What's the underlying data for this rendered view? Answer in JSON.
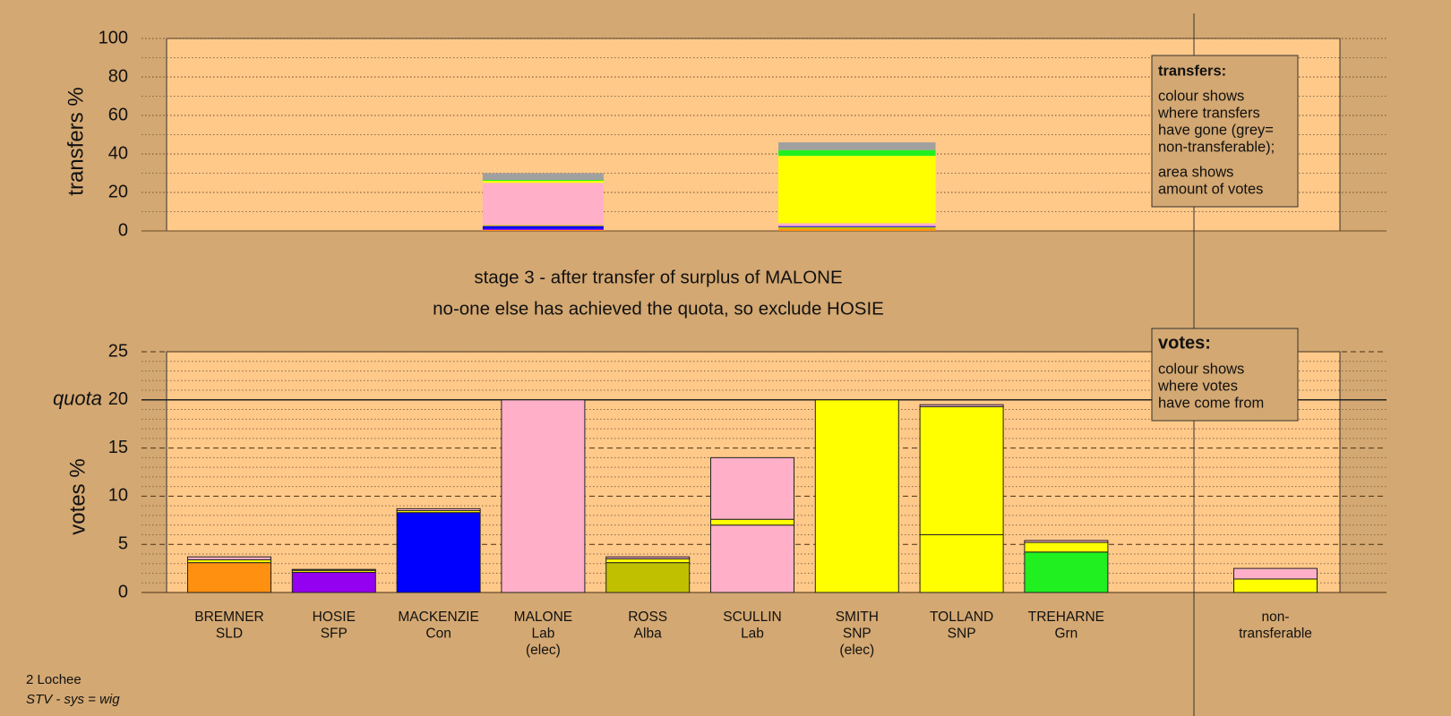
{
  "chart_data": [
    {
      "type": "bar",
      "ylabel": "transfers %",
      "ylim": [
        0,
        100
      ],
      "yticks": [
        0,
        20,
        40,
        60,
        80,
        100
      ],
      "minor_yticks": [
        10,
        30,
        50,
        70,
        90
      ],
      "grid": true,
      "transfers": [
        {
          "from": "MALONE",
          "votes": 5.0,
          "segments": [
            {
              "color": "#ff9010",
              "value": 0.5
            },
            {
              "color": "#9400f0",
              "value": 0.5
            },
            {
              "color": "#0000ff",
              "value": 1.5
            },
            {
              "color": "#c0c000",
              "value": 0.5
            },
            {
              "color": "#ffb0c8",
              "value": 22
            },
            {
              "color": "#ffff00",
              "value": 1
            },
            {
              "color": "#20f020",
              "value": 0.5
            },
            {
              "color": "#a0a0a0",
              "value": 3.5
            }
          ]
        },
        {
          "from": "SMITH",
          "votes": 6.5,
          "segments": [
            {
              "color": "#ff9010",
              "value": 1
            },
            {
              "color": "#c0c000",
              "value": 1
            },
            {
              "color": "#0000ff",
              "value": 0.5
            },
            {
              "color": "#ffb0c8",
              "value": 1.5
            },
            {
              "color": "#ffff00",
              "value": 35
            },
            {
              "color": "#20f020",
              "value": 3
            },
            {
              "color": "#a0a0a0",
              "value": 4
            }
          ]
        }
      ],
      "legend": {
        "title": "transfers:",
        "lines": [
          "colour shows",
          "where transfers",
          "have gone (grey=",
          "non-transferable);"
        ],
        "note": [
          "area shows",
          "amount of votes"
        ]
      }
    },
    {
      "type": "bar",
      "title": [
        "stage 3 - after transfer of surplus of MALONE",
        "no-one else has achieved the quota, so exclude HOSIE"
      ],
      "ylabel": "votes %",
      "ylim": [
        0,
        25
      ],
      "yticks": [
        0,
        5,
        10,
        15,
        20,
        25
      ],
      "minor_yticks": [
        1,
        2,
        3,
        4,
        6,
        7,
        8,
        9,
        11,
        12,
        13,
        14,
        16,
        17,
        18,
        19,
        21,
        22,
        23,
        24
      ],
      "quota": {
        "value": 20,
        "label": "quota"
      },
      "grid": true,
      "categories": [
        [
          "BREMNER",
          "SLD"
        ],
        [
          "HOSIE",
          "SFP"
        ],
        [
          "MACKENZIE",
          "Con"
        ],
        [
          "MALONE",
          "Lab",
          "(elec)"
        ],
        [
          "ROSS",
          "Alba"
        ],
        [
          "SCULLIN",
          "Lab"
        ],
        [
          "SMITH",
          "SNP",
          "(elec)"
        ],
        [
          "TOLLAND",
          "SNP"
        ],
        [
          "TREHARNE",
          "Grn"
        ],
        null,
        [
          "non-",
          "transferable"
        ]
      ],
      "stacks": [
        [
          {
            "color": "#ff9010",
            "value": 3.1
          },
          {
            "color": "#ffff00",
            "value": 0.3
          },
          {
            "color": "#ffb0c8",
            "value": 0.3
          }
        ],
        [
          {
            "color": "#9400f0",
            "value": 2.1
          },
          {
            "color": "#ffff00",
            "value": 0.2
          },
          {
            "color": "#ffb0c8",
            "value": 0.1
          }
        ],
        [
          {
            "color": "#0000ff",
            "value": 8.3
          },
          {
            "color": "#ffff00",
            "value": 0.2
          },
          {
            "color": "#ffb0c8",
            "value": 0.2
          }
        ],
        [
          {
            "color": "#ffb0c8",
            "value": 20
          }
        ],
        [
          {
            "color": "#c0c000",
            "value": 3.1
          },
          {
            "color": "#ffff00",
            "value": 0.4
          },
          {
            "color": "#ffb0c8",
            "value": 0.2
          }
        ],
        [
          {
            "color": "#ffb0c8",
            "value": 7.0
          },
          {
            "color": "#ffff00",
            "value": 0.6
          },
          {
            "color": "#ffb0c8",
            "value": 6.4
          }
        ],
        [
          {
            "color": "#ffff00",
            "value": 20
          }
        ],
        [
          {
            "color": "#ffff00",
            "value": 6.0
          },
          {
            "color": "#ffff00",
            "value": 13.3
          },
          {
            "color": "#ffb0c8",
            "value": 0.2
          }
        ],
        [
          {
            "color": "#20f020",
            "value": 4.2
          },
          {
            "color": "#ffff00",
            "value": 1.0
          },
          {
            "color": "#ffb0c8",
            "value": 0.2
          }
        ],
        [],
        [
          {
            "color": "#ffff00",
            "value": 1.4
          },
          {
            "color": "#ffb0c8",
            "value": 1.1
          }
        ]
      ],
      "legend": {
        "title": "votes:",
        "lines": [
          "colour shows",
          "where votes",
          "have come from"
        ]
      }
    }
  ],
  "footer": {
    "constituency": "2 Lochee",
    "system": "STV - sys = wig"
  }
}
